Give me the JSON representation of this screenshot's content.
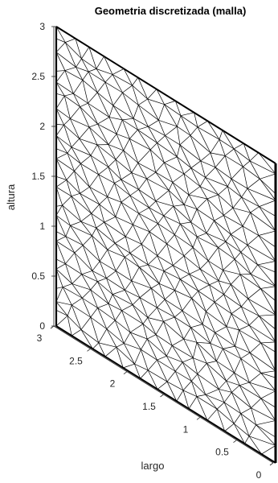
{
  "figure": {
    "title": "Geometria discretizada (malla)",
    "ylabel": "altura",
    "xlabel": "largo"
  },
  "chart_data": {
    "type": "mesh",
    "title": "Geometria discretizada (malla)",
    "z_axis": {
      "label": "altura",
      "range": [
        0,
        3
      ],
      "ticks": [
        "0",
        "0.5",
        "1",
        "1.5",
        "2",
        "2.5",
        "3"
      ]
    },
    "depth_axis": {
      "label": "largo",
      "range": [
        0,
        3
      ],
      "ticks": [
        "0",
        "0.5",
        "1",
        "1.5",
        "2",
        "2.5",
        "3"
      ]
    },
    "grid": false
  },
  "colors": {
    "mesh_edge": "#000000",
    "axis": "#262626",
    "background": "#ffffff"
  }
}
